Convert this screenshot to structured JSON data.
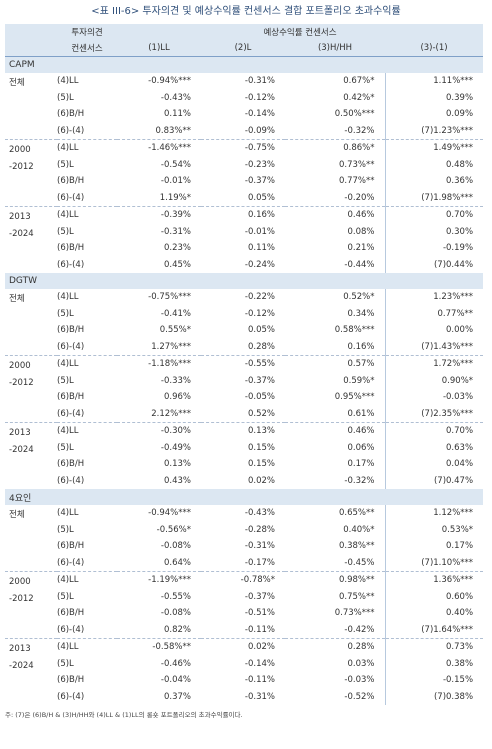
{
  "title": "<표 III-6> 투자의견 및 예상수익률 컨센서스 결합 포트폴리오 초과수익률",
  "header": {
    "opinion_line1": "투자의견",
    "opinion_line2": "컨센서스",
    "forecast": "예상수익률 컨센서스",
    "cols": [
      "(1)LL",
      "(2)L",
      "(3)H/HH",
      "(3)-(1)"
    ]
  },
  "models": [
    {
      "name": "CAPM",
      "groups": [
        {
          "p1": "전체",
          "p2": "",
          "rows": [
            [
              "(4)LL",
              "-0.94%***",
              "-0.31%",
              "0.67%*",
              "1.11%***"
            ],
            [
              "(5)L",
              "-0.43%",
              "-0.12%",
              "0.42%*",
              "0.39%"
            ],
            [
              "(6)B/H",
              "0.11%",
              "-0.14%",
              "0.50%***",
              "0.09%"
            ],
            [
              "(6)-(4)",
              "0.83%**",
              "-0.09%",
              "-0.32%",
              "(7)1.23%***"
            ]
          ]
        },
        {
          "p1": "2000",
          "p2": "-2012",
          "rows": [
            [
              "(4)LL",
              "-1.46%***",
              "-0.75%",
              "0.86%*",
              "1.49%***"
            ],
            [
              "(5)L",
              "-0.54%",
              "-0.23%",
              "0.73%**",
              "0.48%"
            ],
            [
              "(6)B/H",
              "-0.01%",
              "-0.37%",
              "0.77%**",
              "0.36%"
            ],
            [
              "(6)-(4)",
              "1.19%*",
              "0.05%",
              "-0.20%",
              "(7)1.98%***"
            ]
          ]
        },
        {
          "p1": "2013",
          "p2": "-2024",
          "rows": [
            [
              "(4)LL",
              "-0.39%",
              "0.16%",
              "0.46%",
              "0.70%"
            ],
            [
              "(5)L",
              "-0.31%",
              "-0.01%",
              "0.08%",
              "0.30%"
            ],
            [
              "(6)B/H",
              "0.23%",
              "0.11%",
              "0.21%",
              "-0.19%"
            ],
            [
              "(6)-(4)",
              "0.45%",
              "-0.24%",
              "-0.44%",
              "(7)0.44%"
            ]
          ]
        }
      ]
    },
    {
      "name": "DGTW",
      "groups": [
        {
          "p1": "전체",
          "p2": "",
          "rows": [
            [
              "(4)LL",
              "-0.75%***",
              "-0.22%",
              "0.52%*",
              "1.23%***"
            ],
            [
              "(5)L",
              "-0.41%",
              "-0.12%",
              "0.34%",
              "0.77%**"
            ],
            [
              "(6)B/H",
              "0.55%*",
              "0.05%",
              "0.58%***",
              "0.00%"
            ],
            [
              "(6)-(4)",
              "1.27%***",
              "0.28%",
              "0.16%",
              "(7)1.43%***"
            ]
          ]
        },
        {
          "p1": "2000",
          "p2": "-2012",
          "rows": [
            [
              "(4)LL",
              "-1.18%***",
              "-0.55%",
              "0.57%",
              "1.72%***"
            ],
            [
              "(5)L",
              "-0.33%",
              "-0.37%",
              "0.59%*",
              "0.90%*"
            ],
            [
              "(6)B/H",
              "0.96%",
              "-0.05%",
              "0.95%***",
              "-0.03%"
            ],
            [
              "(6)-(4)",
              "2.12%***",
              "0.52%",
              "0.61%",
              "(7)2.35%***"
            ]
          ]
        },
        {
          "p1": "2013",
          "p2": "-2024",
          "rows": [
            [
              "(4)LL",
              "-0.30%",
              "0.13%",
              "0.46%",
              "0.70%"
            ],
            [
              "(5)L",
              "-0.49%",
              "0.15%",
              "0.06%",
              "0.63%"
            ],
            [
              "(6)B/H",
              "0.13%",
              "0.15%",
              "0.17%",
              "0.04%"
            ],
            [
              "(6)-(4)",
              "0.43%",
              "0.02%",
              "-0.32%",
              "(7)0.47%"
            ]
          ]
        }
      ]
    },
    {
      "name": "4요인",
      "groups": [
        {
          "p1": "전체",
          "p2": "",
          "rows": [
            [
              "(4)LL",
              "-0.94%***",
              "-0.43%",
              "0.65%**",
              "1.12%***"
            ],
            [
              "(5)L",
              "-0.56%*",
              "-0.28%",
              "0.40%*",
              "0.53%*"
            ],
            [
              "(6)B/H",
              "-0.08%",
              "-0.31%",
              "0.38%**",
              "0.17%"
            ],
            [
              "(6)-(4)",
              "0.64%",
              "-0.17%",
              "-0.45%",
              "(7)1.10%***"
            ]
          ]
        },
        {
          "p1": "2000",
          "p2": "-2012",
          "rows": [
            [
              "(4)LL",
              "-1.19%***",
              "-0.78%*",
              "0.98%**",
              "1.36%***"
            ],
            [
              "(5)L",
              "-0.55%",
              "-0.37%",
              "0.75%**",
              "0.60%"
            ],
            [
              "(6)B/H",
              "-0.08%",
              "-0.51%",
              "0.73%***",
              "0.40%"
            ],
            [
              "(6)-(4)",
              "0.82%",
              "-0.11%",
              "-0.42%",
              "(7)1.64%***"
            ]
          ]
        },
        {
          "p1": "2013",
          "p2": "-2024",
          "rows": [
            [
              "(4)LL",
              "-0.58%**",
              "0.02%",
              "0.28%",
              "0.73%"
            ],
            [
              "(5)L",
              "-0.46%",
              "-0.14%",
              "0.03%",
              "0.38%"
            ],
            [
              "(6)B/H",
              "-0.04%",
              "-0.11%",
              "-0.03%",
              "-0.15%"
            ],
            [
              "(6)-(4)",
              "0.37%",
              "-0.31%",
              "-0.52%",
              "(7)0.38%"
            ]
          ]
        }
      ]
    }
  ],
  "note": "주: (7)은 (6)B/H & (3)H/HH와 (4)LL & (1)LL의 롱숏 포트폴리오의 초과수익률이다."
}
